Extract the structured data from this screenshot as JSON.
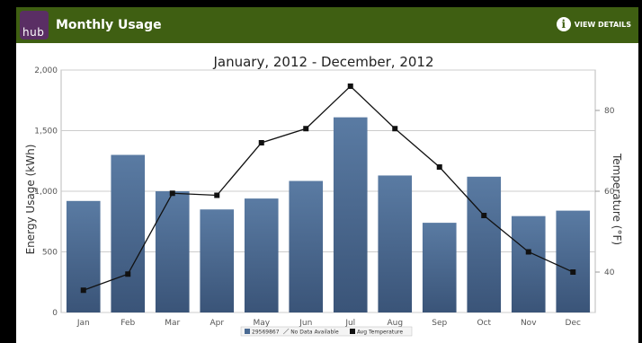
{
  "header": {
    "logo_text": "hub",
    "title": "Monthly Usage",
    "details_label": "VIEW DETAILS",
    "info_icon": "info-icon"
  },
  "chart_data": {
    "type": "bar",
    "title": "January, 2012 - December, 2012",
    "categories": [
      "Jan",
      "Feb",
      "Mar",
      "Apr",
      "May",
      "Jun",
      "Jul",
      "Aug",
      "Sep",
      "Oct",
      "Nov",
      "Dec"
    ],
    "ylabel": "Energy Usage (kWh)",
    "y2label": "Temperature (°F)",
    "ylim": [
      0,
      2000
    ],
    "y2lim": [
      30,
      90
    ],
    "yticks": [
      "0",
      "500",
      "1,000",
      "1,500",
      "2,000"
    ],
    "y2ticks": [
      "40",
      "60",
      "80"
    ],
    "grid": true,
    "legend_position": "bottom-center",
    "series": [
      {
        "name": "29569867",
        "type": "bar",
        "color": "#4a6a92",
        "values": [
          920,
          1300,
          1000,
          850,
          940,
          1085,
          1610,
          1130,
          740,
          1120,
          795,
          840
        ]
      },
      {
        "name": "Avg Temperature",
        "type": "line",
        "axis": "right",
        "color": "#111111",
        "values": [
          35.5,
          39.5,
          59.5,
          59,
          72,
          75.5,
          86,
          75.5,
          66,
          54,
          45,
          40
        ]
      }
    ],
    "legend": [
      "29569867",
      "No Data Available",
      "Avg Temperature"
    ]
  }
}
